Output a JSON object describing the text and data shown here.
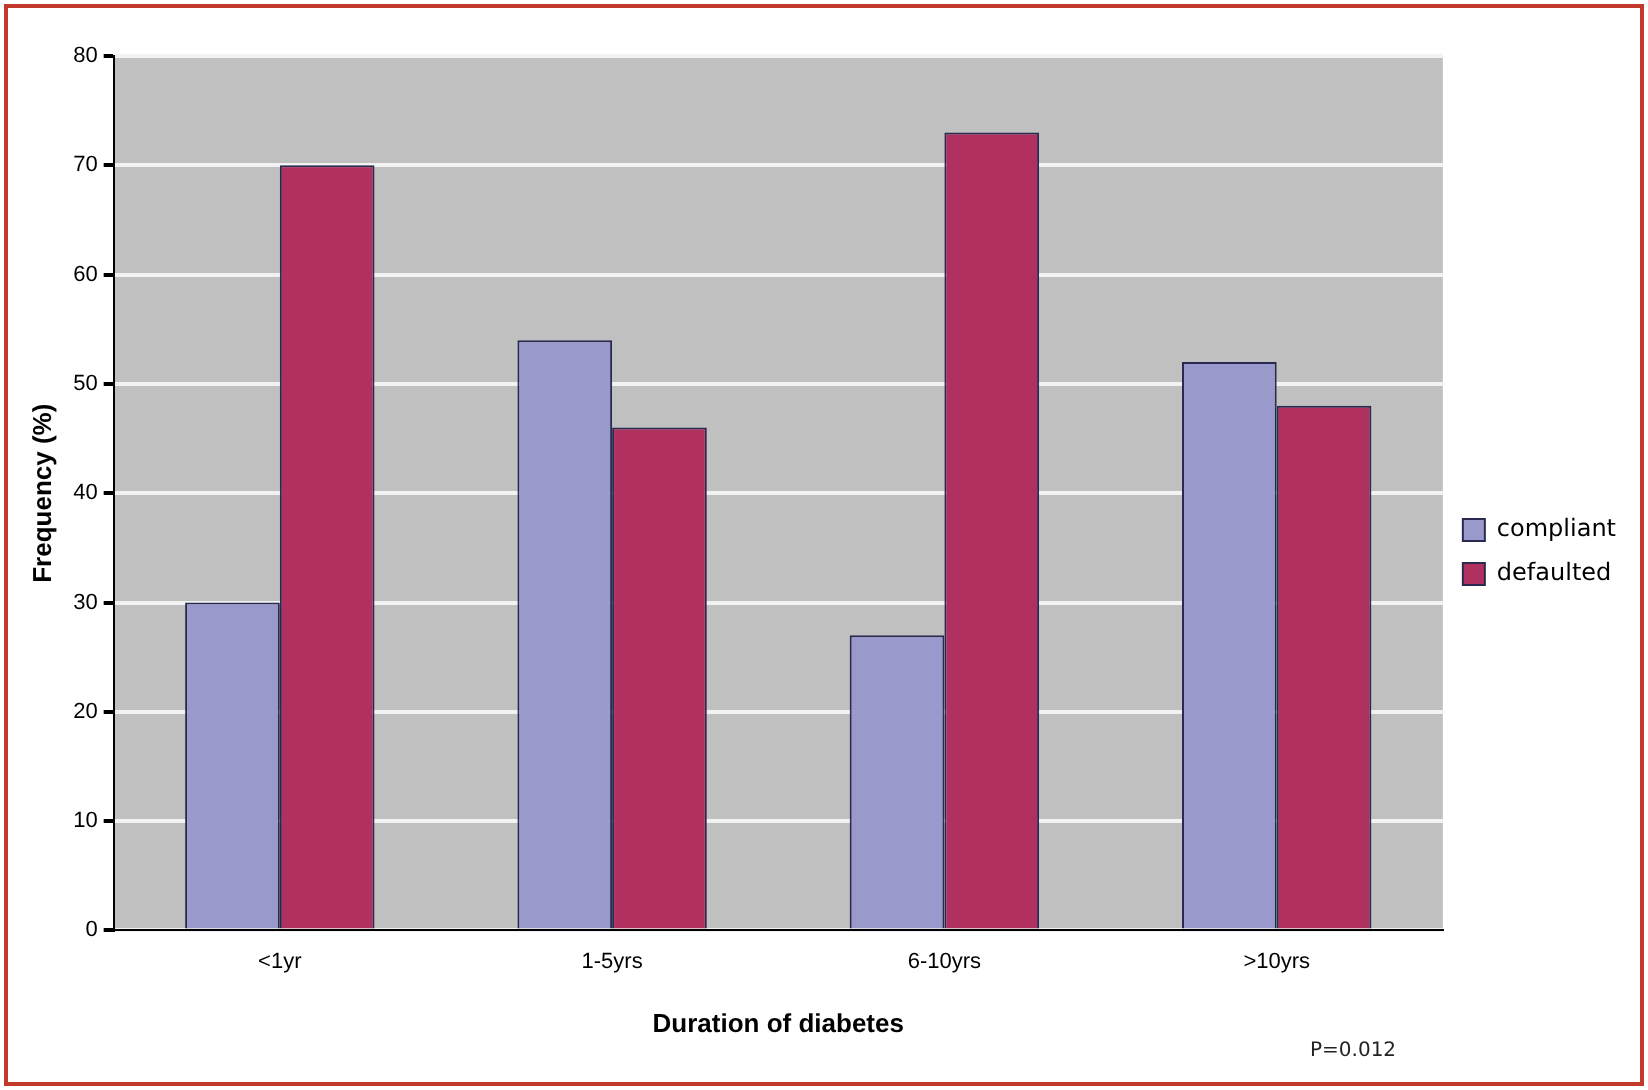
{
  "chart_data": {
    "type": "bar",
    "xlabel": "Duration of diabetes",
    "ylabel": "Frequency (%)",
    "categories": [
      "<1yr",
      "1-5yrs",
      "6-10yrs",
      ">10yrs"
    ],
    "series": [
      {
        "name": "compliant",
        "color": "#9999cc",
        "values": [
          30,
          54,
          27,
          52
        ]
      },
      {
        "name": "defaulted",
        "color": "#b03060",
        "values": [
          70,
          46,
          73,
          48
        ]
      }
    ],
    "ylim": [
      0,
      80
    ],
    "yticks": [
      0,
      10,
      20,
      30,
      40,
      50,
      60,
      70,
      80
    ],
    "grid": "y",
    "legend": "right",
    "annotations": [
      "P=0.012"
    ]
  }
}
